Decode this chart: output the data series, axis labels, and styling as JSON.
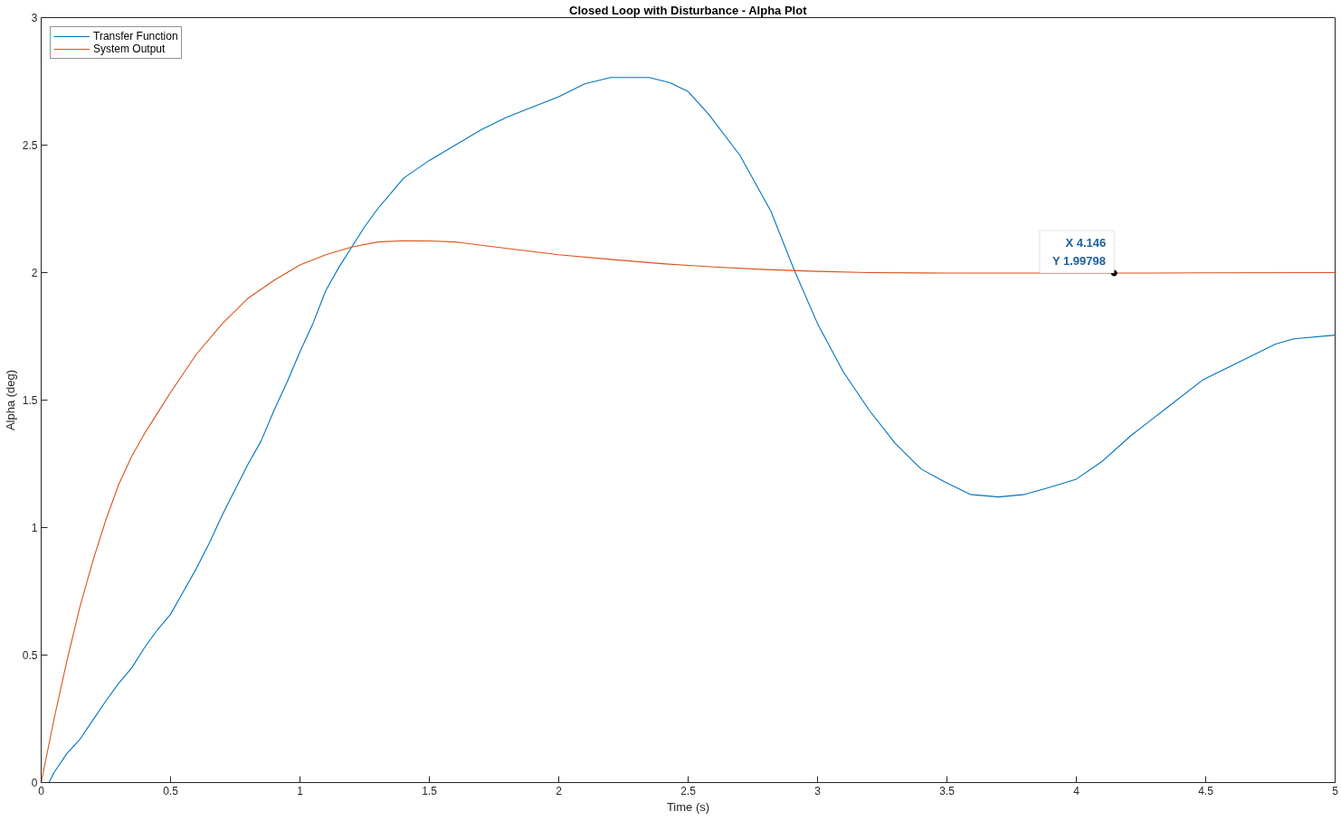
{
  "chart_data": {
    "type": "line",
    "title": "Closed Loop with Disturbance - Alpha Plot",
    "xlabel": "Time (s)",
    "ylabel": "Alpha (deg)",
    "xlim": [
      0,
      5
    ],
    "ylim": [
      0,
      3
    ],
    "xticks": [
      0,
      0.5,
      1,
      1.5,
      2,
      2.5,
      3,
      3.5,
      4,
      4.5,
      5
    ],
    "yticks": [
      0,
      0.5,
      1,
      1.5,
      2,
      2.5,
      3
    ],
    "legend": "top left",
    "series": [
      {
        "name": "Transfer Function",
        "color": "#0072bd",
        "x": [
          0,
          0.03,
          0.05,
          0.1,
          0.15,
          0.2,
          0.25,
          0.3,
          0.35,
          0.4,
          0.45,
          0.5,
          0.55,
          0.6,
          0.65,
          0.7,
          0.75,
          0.8,
          0.85,
          0.9,
          0.95,
          1.0,
          1.05,
          1.1,
          1.15,
          1.2,
          1.25,
          1.3,
          1.35,
          1.4,
          1.5,
          1.6,
          1.7,
          1.8,
          1.9,
          2.0,
          2.1,
          2.2,
          2.35,
          2.43,
          2.5,
          2.58,
          2.7,
          2.82,
          2.91,
          3.0,
          3.1,
          3.2,
          3.3,
          3.4,
          3.49,
          3.59,
          3.7,
          3.8,
          3.87,
          4.0,
          4.1,
          4.21,
          4.35,
          4.49,
          4.63,
          4.77,
          4.84,
          5.0
        ],
        "values": [
          0,
          0,
          0.04,
          0.115,
          0.17,
          0.245,
          0.32,
          0.39,
          0.45,
          0.53,
          0.6,
          0.66,
          0.75,
          0.84,
          0.94,
          1.05,
          1.15,
          1.25,
          1.34,
          1.46,
          1.57,
          1.69,
          1.8,
          1.93,
          2.02,
          2.1,
          2.18,
          2.25,
          2.31,
          2.37,
          2.44,
          2.5,
          2.56,
          2.61,
          2.65,
          2.69,
          2.74,
          2.765,
          2.765,
          2.745,
          2.71,
          2.62,
          2.46,
          2.24,
          2.01,
          1.8,
          1.61,
          1.46,
          1.33,
          1.23,
          1.18,
          1.13,
          1.12,
          1.13,
          1.15,
          1.19,
          1.26,
          1.36,
          1.47,
          1.58,
          1.65,
          1.72,
          1.74,
          1.755
        ]
      },
      {
        "name": "System Output",
        "color": "#d95319",
        "x": [
          0,
          0.05,
          0.1,
          0.15,
          0.2,
          0.25,
          0.3,
          0.35,
          0.4,
          0.45,
          0.5,
          0.6,
          0.7,
          0.8,
          0.9,
          1.0,
          1.1,
          1.2,
          1.3,
          1.4,
          1.5,
          1.6,
          1.8,
          2.0,
          2.2,
          2.4,
          2.6,
          2.8,
          3.0,
          3.2,
          3.5,
          4.0,
          4.146,
          4.5,
          5.0
        ],
        "values": [
          0,
          0.25,
          0.48,
          0.69,
          0.87,
          1.03,
          1.17,
          1.28,
          1.37,
          1.45,
          1.53,
          1.68,
          1.8,
          1.9,
          1.97,
          2.03,
          2.07,
          2.1,
          2.12,
          2.125,
          2.124,
          2.12,
          2.095,
          2.07,
          2.052,
          2.035,
          2.022,
          2.012,
          2.005,
          2.0,
          1.998,
          1.998,
          1.998,
          1.999,
          2.0
        ]
      }
    ],
    "annotations": [
      {
        "text": "X 4.146\nY 1.99798",
        "x": 4.146,
        "y": 1.99798
      }
    ]
  }
}
